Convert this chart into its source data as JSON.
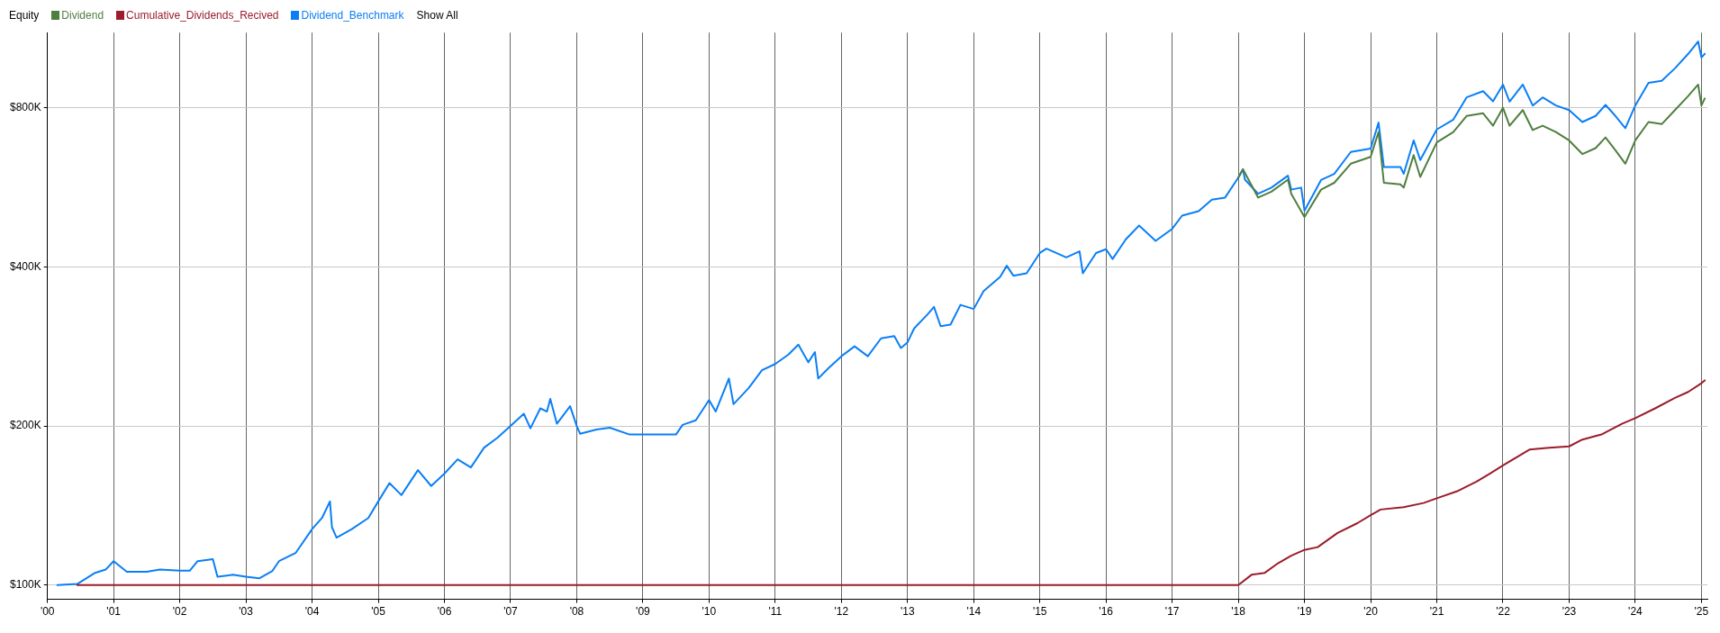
{
  "chart_data": {
    "type": "line",
    "legend_title": "Equity",
    "annotations": [
      "Show All"
    ],
    "legend": "top left",
    "grid": true,
    "log": "y",
    "xlim": [
      2000,
      2025.09
    ],
    "ylim": [
      94000,
      1110000
    ],
    "xticks": [
      {
        "value": 2000,
        "label": "'00"
      },
      {
        "value": 2001,
        "label": "'01"
      },
      {
        "value": 2002,
        "label": "'02"
      },
      {
        "value": 2003,
        "label": "'03"
      },
      {
        "value": 2004,
        "label": "'04"
      },
      {
        "value": 2005,
        "label": "'05"
      },
      {
        "value": 2006,
        "label": "'06"
      },
      {
        "value": 2007,
        "label": "'07"
      },
      {
        "value": 2008,
        "label": "'08"
      },
      {
        "value": 2009,
        "label": "'09"
      },
      {
        "value": 2010,
        "label": "'10"
      },
      {
        "value": 2011,
        "label": "'11"
      },
      {
        "value": 2012,
        "label": "'12"
      },
      {
        "value": 2013,
        "label": "'13"
      },
      {
        "value": 2014,
        "label": "'14"
      },
      {
        "value": 2015,
        "label": "'15"
      },
      {
        "value": 2016,
        "label": "'16"
      },
      {
        "value": 2017,
        "label": "'17"
      },
      {
        "value": 2018,
        "label": "'18"
      },
      {
        "value": 2019,
        "label": "'19"
      },
      {
        "value": 2020,
        "label": "'20"
      },
      {
        "value": 2021,
        "label": "'21"
      },
      {
        "value": 2022,
        "label": "'22"
      },
      {
        "value": 2023,
        "label": "'23"
      },
      {
        "value": 2024,
        "label": "'24"
      },
      {
        "value": 2025,
        "label": "'25"
      }
    ],
    "yticks": [
      {
        "value": 100000,
        "label": "$100K"
      },
      {
        "value": 200000,
        "label": "$200K"
      },
      {
        "value": 400000,
        "label": "$400K"
      },
      {
        "value": 800000,
        "label": "$800K"
      }
    ],
    "series": [
      {
        "name": "Dividend",
        "color": "#4f7f3f",
        "x": [
          2018.0,
          2018.07,
          2018.3,
          2018.5,
          2018.75,
          2018.8,
          2019.0,
          2019.25,
          2019.45,
          2019.7,
          2020.0,
          2020.12,
          2020.2,
          2020.45,
          2020.5,
          2020.65,
          2020.75,
          2021.0,
          2021.25,
          2021.45,
          2021.7,
          2021.85,
          2022.0,
          2022.1,
          2022.3,
          2022.45,
          2022.6,
          2022.8,
          2023.0,
          2023.2,
          2023.4,
          2023.55,
          2023.7,
          2023.85,
          2024.0,
          2024.2,
          2024.4,
          2024.6,
          2024.8,
          2024.95,
          2025.0,
          2025.05
        ],
        "values": [
          590000,
          612000,
          541000,
          555000,
          585000,
          550000,
          497000,
          560000,
          577000,
          627000,
          646000,
          720000,
          577000,
          573000,
          565000,
          651000,
          592000,
          688000,
          720000,
          772000,
          781000,
          740000,
          800000,
          740000,
          792000,
          726000,
          740000,
          720000,
          694000,
          654000,
          671000,
          703000,
          665000,
          627000,
          694000,
          752000,
          745000,
          792000,
          842000,
          885000,
          808000,
          833000
        ]
      },
      {
        "name": "Cumulative_Dividends_Recived",
        "color": "#9b1c2a",
        "x": [
          2000.45,
          2018.0,
          2018.2,
          2018.4,
          2018.6,
          2018.8,
          2019.0,
          2019.2,
          2019.5,
          2019.8,
          2020.0,
          2020.15,
          2020.5,
          2020.8,
          2021.0,
          2021.3,
          2021.6,
          2021.8,
          2022.0,
          2022.2,
          2022.4,
          2022.7,
          2023.0,
          2023.2,
          2023.5,
          2023.8,
          2024.0,
          2024.3,
          2024.6,
          2024.8,
          2025.0,
          2025.05
        ],
        "values": [
          100000,
          100000,
          104600,
          105500,
          110000,
          113700,
          116600,
          118000,
          125500,
          131000,
          135600,
          139000,
          140400,
          143000,
          146000,
          150400,
          157000,
          162500,
          168400,
          174400,
          180500,
          182000,
          183000,
          188500,
          193000,
          202000,
          207000,
          216000,
          226000,
          232000,
          241000,
          244000
        ]
      },
      {
        "name": "Dividend_Benchmark",
        "color": "#0a7ff5",
        "x": [
          2000.15,
          2000.45,
          2000.72,
          2000.88,
          2001.0,
          2001.2,
          2001.5,
          2001.7,
          2002.0,
          2002.15,
          2002.27,
          2002.5,
          2002.57,
          2002.8,
          2003.0,
          2003.2,
          2003.4,
          2003.5,
          2003.75,
          2004.0,
          2004.15,
          2004.27,
          2004.3,
          2004.37,
          2004.6,
          2004.85,
          2005.0,
          2005.17,
          2005.35,
          2005.6,
          2005.8,
          2006.0,
          2006.2,
          2006.4,
          2006.6,
          2006.8,
          2007.0,
          2007.2,
          2007.3,
          2007.45,
          2007.55,
          2007.6,
          2007.7,
          2007.9,
          2008.0,
          2008.05,
          2008.3,
          2008.5,
          2008.8,
          2009.5,
          2009.6,
          2009.8,
          2010.0,
          2010.1,
          2010.3,
          2010.37,
          2010.6,
          2010.8,
          2011.0,
          2011.2,
          2011.35,
          2011.5,
          2011.6,
          2011.65,
          2011.8,
          2012.0,
          2012.2,
          2012.4,
          2012.6,
          2012.8,
          2012.9,
          2013.0,
          2013.1,
          2013.3,
          2013.4,
          2013.5,
          2013.65,
          2013.8,
          2014.0,
          2014.15,
          2014.4,
          2014.5,
          2014.6,
          2014.8,
          2015.0,
          2015.1,
          2015.4,
          2015.6,
          2015.65,
          2015.85,
          2016.0,
          2016.1,
          2016.3,
          2016.5,
          2016.75,
          2017.0,
          2017.15,
          2017.4,
          2017.6,
          2017.8,
          2018.0,
          2018.07,
          2018.1,
          2018.3,
          2018.5,
          2018.75,
          2018.8,
          2018.95,
          2019.0,
          2019.25,
          2019.45,
          2019.7,
          2020.0,
          2020.12,
          2020.2,
          2020.45,
          2020.5,
          2020.65,
          2020.75,
          2021.0,
          2021.25,
          2021.45,
          2021.7,
          2021.85,
          2022.0,
          2022.1,
          2022.3,
          2022.45,
          2022.6,
          2022.8,
          2023.0,
          2023.2,
          2023.4,
          2023.55,
          2023.7,
          2023.85,
          2024.0,
          2024.2,
          2024.4,
          2024.6,
          2024.8,
          2024.95,
          2025.0,
          2025.05
        ],
        "values": [
          100000,
          100500,
          105500,
          107000,
          111000,
          106000,
          106000,
          107000,
          106500,
          106500,
          111000,
          112000,
          103700,
          104600,
          103700,
          103000,
          106400,
          111000,
          115000,
          127600,
          134000,
          144000,
          128700,
          123000,
          127600,
          134000,
          144000,
          156000,
          148000,
          165000,
          154000,
          162500,
          173000,
          167000,
          182000,
          190000,
          200000,
          211000,
          198000,
          216000,
          213000,
          225000,
          202000,
          218000,
          200000,
          193400,
          197000,
          198500,
          192700,
          192700,
          201000,
          205000,
          224000,
          213000,
          246000,
          220000,
          236000,
          255000,
          262000,
          273000,
          285000,
          264000,
          276000,
          246000,
          257000,
          271000,
          283000,
          271000,
          293000,
          296000,
          281000,
          288000,
          306000,
          325000,
          336000,
          309000,
          311000,
          339000,
          333000,
          360000,
          383000,
          402000,
          385000,
          389000,
          425000,
          433000,
          417000,
          428000,
          389000,
          425000,
          432000,
          414000,
          451000,
          479000,
          448000,
          472000,
          500000,
          510000,
          536000,
          541000,
          590000,
          612000,
          585000,
          550000,
          565000,
          595000,
          560000,
          565000,
          511000,
          584000,
          600000,
          660000,
          670000,
          750000,
          618000,
          618000,
          600000,
          694000,
          637000,
          728000,
          760000,
          837000,
          860000,
          823000,
          885000,
          822000,
          885000,
          808000,
          837000,
          808000,
          792000,
          752000,
          772000,
          810000,
          772000,
          732000,
          808000,
          892000,
          900000,
          950000,
          1012000,
          1068000,
          996000,
          1012000
        ]
      }
    ]
  }
}
